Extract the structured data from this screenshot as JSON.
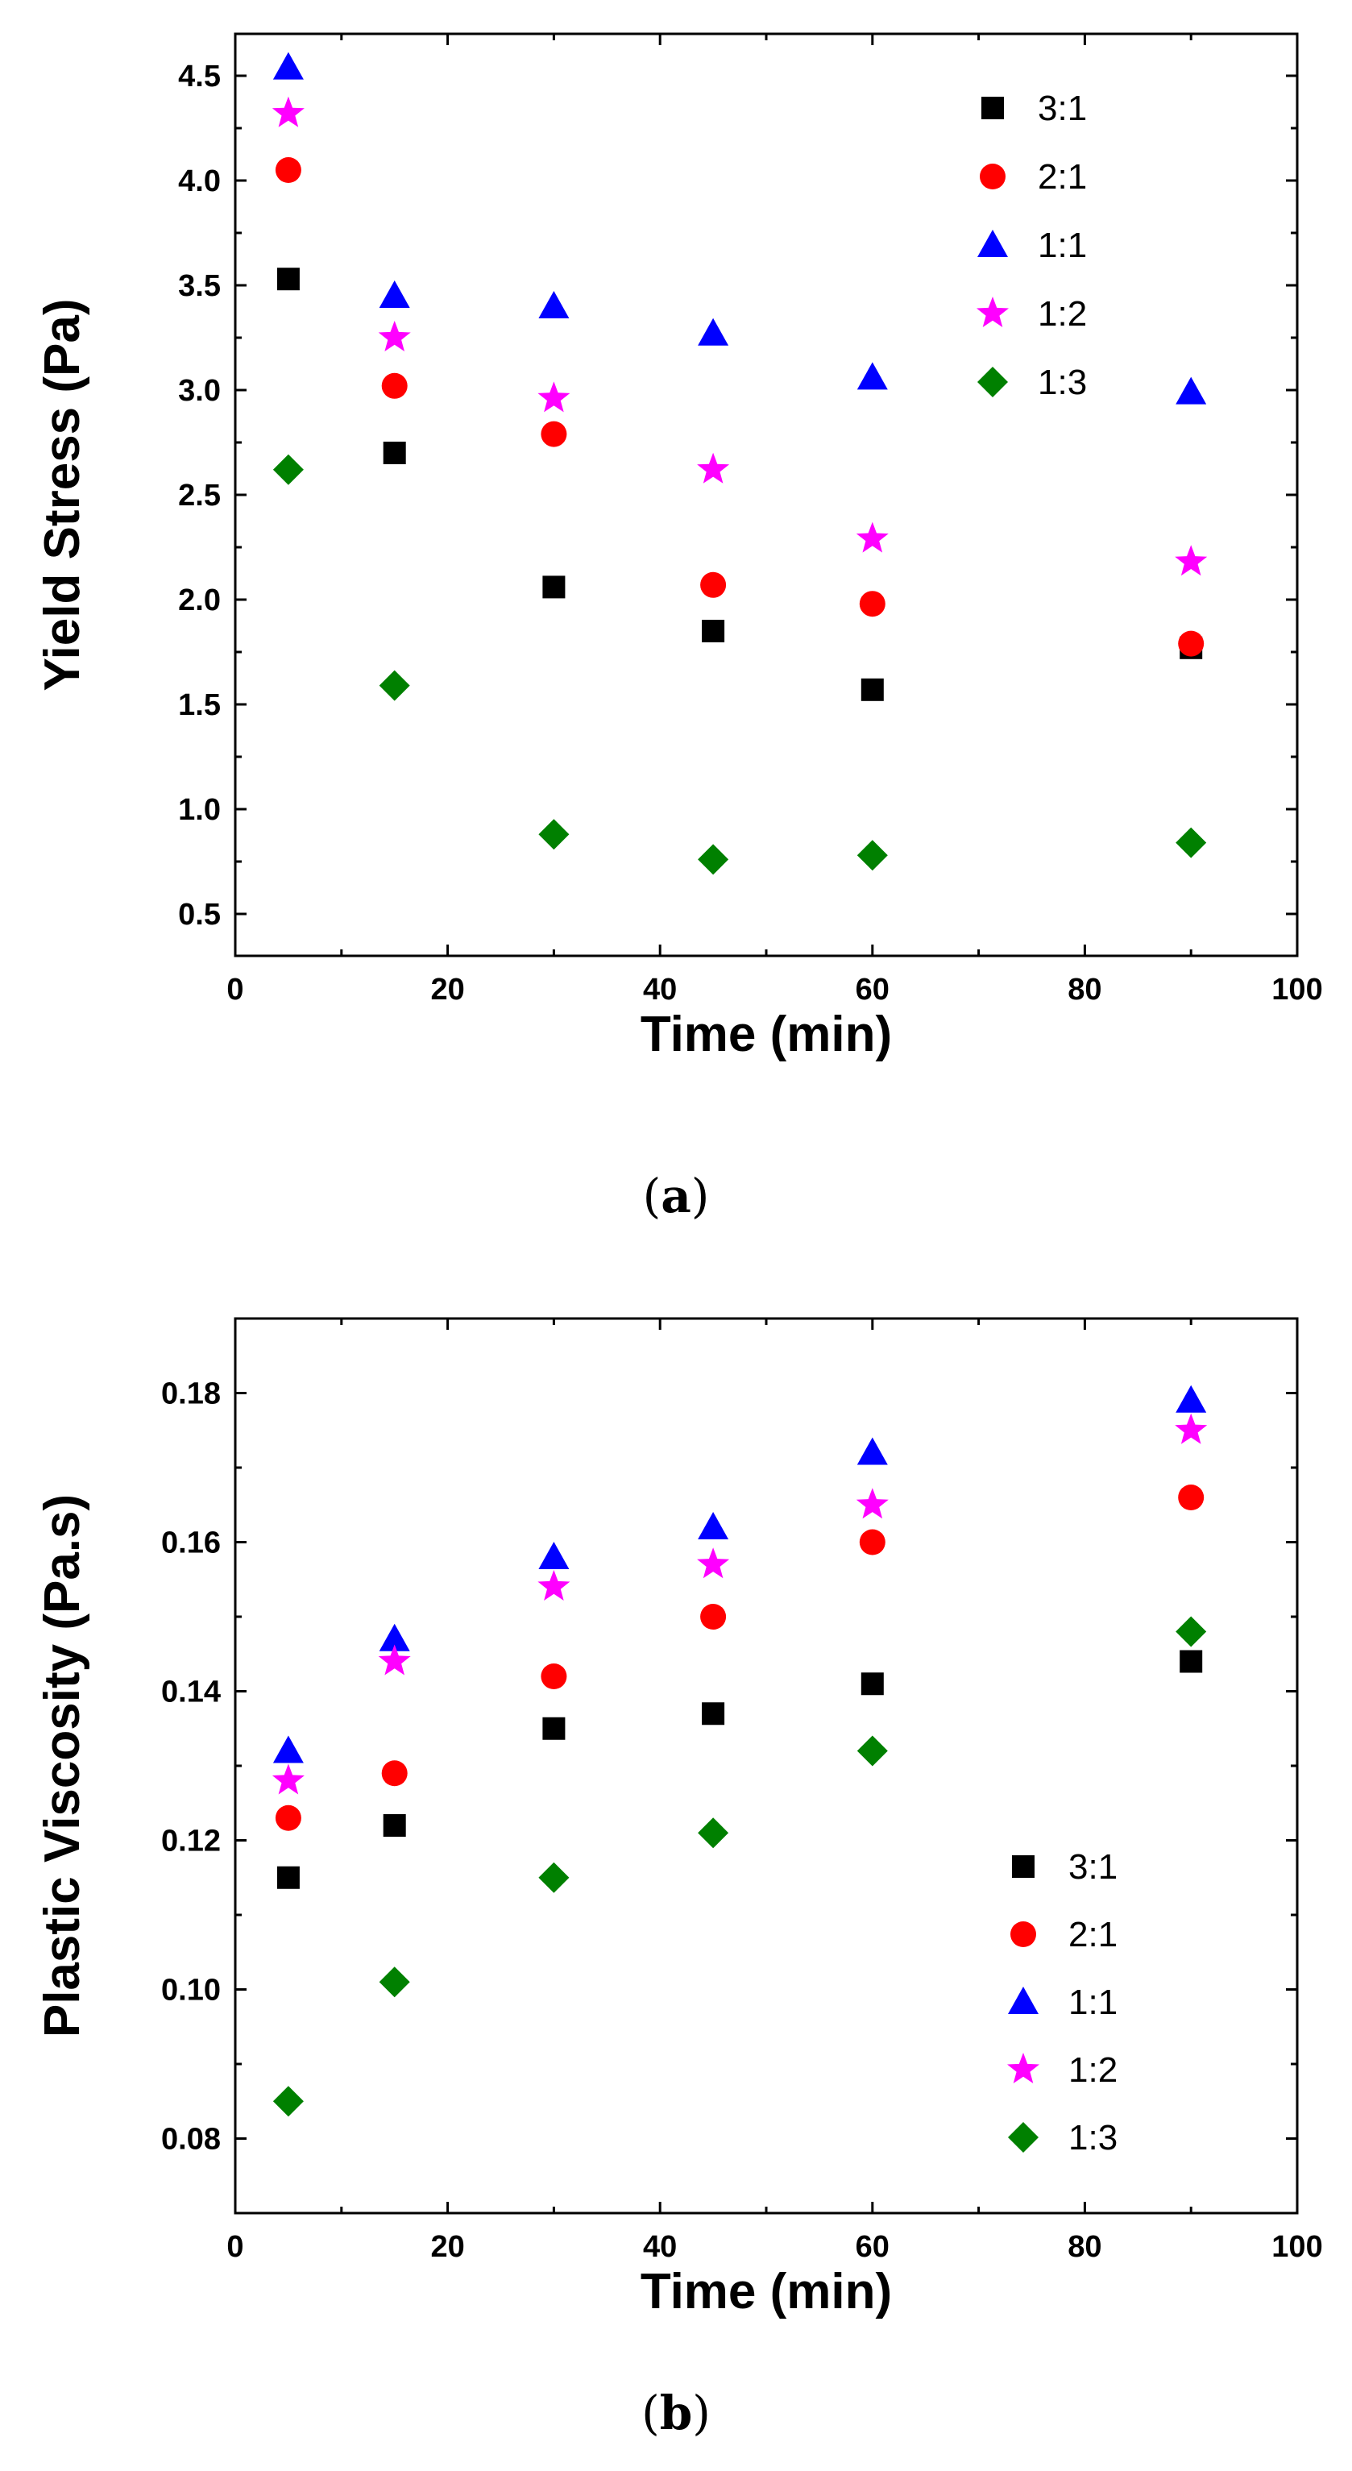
{
  "series_styles": [
    {
      "name": "3:1",
      "marker": "square",
      "color": "#000000"
    },
    {
      "name": "2:1",
      "marker": "circle",
      "color": "#ff0000"
    },
    {
      "name": "1:1",
      "marker": "triangle",
      "color": "#0000ff"
    },
    {
      "name": "1:2",
      "marker": "star",
      "color": "#ff00ff"
    },
    {
      "name": "1:3",
      "marker": "diamond",
      "color": "#008000"
    }
  ],
  "captions": {
    "a": {
      "open": "(",
      "letter": "a",
      "close": ")"
    },
    "b": {
      "open": "(",
      "letter": "b",
      "close": ")"
    }
  },
  "chart_data": [
    {
      "id": "a",
      "type": "scatter",
      "title": "",
      "xlabel": "Time (min)",
      "ylabel": "Yield Stress (Pa)",
      "xlim": [
        0,
        100
      ],
      "ylim": [
        0.3,
        4.7
      ],
      "xticks": [
        0,
        20,
        40,
        60,
        80,
        100
      ],
      "xtick_labels": [
        "0",
        "20",
        "40",
        "60",
        "80",
        "100"
      ],
      "yticks": [
        0.5,
        1.0,
        1.5,
        2.0,
        2.5,
        3.0,
        3.5,
        4.0,
        4.5
      ],
      "ytick_labels": [
        "0.5",
        "1.0",
        "1.5",
        "2.0",
        "2.5",
        "3.0",
        "3.5",
        "4.0",
        "4.5"
      ],
      "x": [
        5,
        15,
        30,
        45,
        60,
        90
      ],
      "legend_position": "top-right",
      "series": [
        {
          "name": "3:1",
          "values": [
            3.53,
            2.7,
            2.06,
            1.85,
            1.57,
            1.77
          ]
        },
        {
          "name": "2:1",
          "values": [
            4.05,
            3.02,
            2.79,
            2.07,
            1.98,
            1.79
          ]
        },
        {
          "name": "1:1",
          "values": [
            4.54,
            3.45,
            3.4,
            3.27,
            3.06,
            2.99
          ]
        },
        {
          "name": "1:2",
          "values": [
            4.32,
            3.25,
            2.96,
            2.62,
            2.29,
            2.18
          ]
        },
        {
          "name": "1:3",
          "values": [
            2.62,
            1.59,
            0.88,
            0.76,
            0.78,
            0.84
          ]
        }
      ]
    },
    {
      "id": "b",
      "type": "scatter",
      "title": "",
      "xlabel": "Time (min)",
      "ylabel": "Plastic Viscosity (Pa.s)",
      "xlim": [
        0,
        100
      ],
      "ylim": [
        0.07,
        0.19
      ],
      "xticks": [
        0,
        20,
        40,
        60,
        80,
        100
      ],
      "xtick_labels": [
        "0",
        "20",
        "40",
        "60",
        "80",
        "100"
      ],
      "yticks": [
        0.08,
        0.1,
        0.12,
        0.14,
        0.16,
        0.18
      ],
      "ytick_labels": [
        "0.08",
        "0.10",
        "0.12",
        "0.14",
        "0.16",
        "0.18"
      ],
      "x": [
        5,
        15,
        30,
        45,
        60,
        90
      ],
      "legend_position": "bottom-right",
      "series": [
        {
          "name": "3:1",
          "values": [
            0.115,
            0.122,
            0.135,
            0.137,
            0.141,
            0.144
          ]
        },
        {
          "name": "2:1",
          "values": [
            0.123,
            0.129,
            0.142,
            0.15,
            0.16,
            0.166
          ]
        },
        {
          "name": "1:1",
          "values": [
            0.132,
            0.147,
            0.158,
            0.162,
            0.172,
            0.179
          ]
        },
        {
          "name": "1:2",
          "values": [
            0.128,
            0.144,
            0.154,
            0.157,
            0.165,
            0.175
          ]
        },
        {
          "name": "1:3",
          "values": [
            0.085,
            0.101,
            0.115,
            0.121,
            0.132,
            0.148
          ]
        }
      ]
    }
  ]
}
